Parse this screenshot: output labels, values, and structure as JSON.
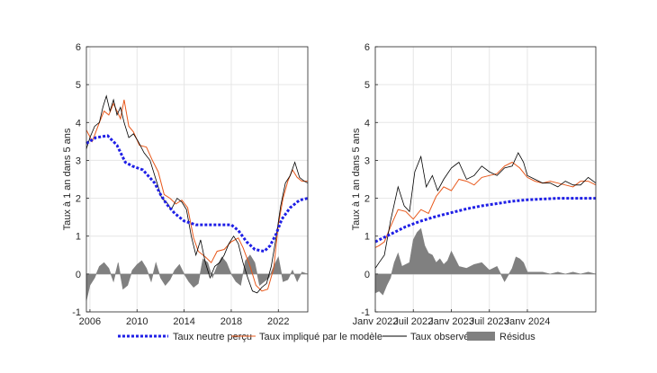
{
  "colors": {
    "neutral": "#1f1fe6",
    "implied": "#e8581b",
    "observed": "#000000",
    "residuals": "#808080",
    "grid": "#e6e6e6",
    "axis": "#262626"
  },
  "legend": {
    "items": [
      {
        "key": "neutral",
        "label": "Taux neutre perçu"
      },
      {
        "key": "implied",
        "label": "Taux impliqué par le modèle"
      },
      {
        "key": "observed",
        "label": "Taux observé"
      },
      {
        "key": "residuals",
        "label": "Résidus"
      }
    ]
  },
  "chart_data": [
    {
      "type": "line",
      "panel": "left",
      "ylabel": "Taux à 1 an dans 5 ans",
      "xlabel": "",
      "ylim": [
        -1,
        6
      ],
      "xlim": [
        2005.7,
        2024.5
      ],
      "grid": true,
      "yticks": [
        -1,
        0,
        1,
        2,
        3,
        4,
        5,
        6
      ],
      "xticks": [
        2006,
        2010,
        2014,
        2018,
        2022
      ],
      "xtick_labels": [
        "2006",
        "2010",
        "2014",
        "2018",
        "2022"
      ],
      "series": [
        {
          "key": "neutral",
          "x": [
            2005.7,
            2006.5,
            2007.5,
            2008.3,
            2009.0,
            2009.6,
            2010.5,
            2011.5,
            2012.0,
            2012.5,
            2013.2,
            2014.0,
            2015.0,
            2016.0,
            2017.0,
            2018.0,
            2018.6,
            2019.3,
            2020.0,
            2020.8,
            2021.3,
            2021.8,
            2022.3,
            2023.0,
            2023.8,
            2024.5
          ],
          "y": [
            3.45,
            3.6,
            3.65,
            3.4,
            2.95,
            2.85,
            2.75,
            2.4,
            2.1,
            1.85,
            1.6,
            1.4,
            1.3,
            1.3,
            1.3,
            1.3,
            1.15,
            0.85,
            0.65,
            0.6,
            0.75,
            1.05,
            1.45,
            1.75,
            1.95,
            2.0
          ]
        },
        {
          "key": "implied",
          "x": [
            2005.7,
            2006.2,
            2006.8,
            2007.2,
            2007.6,
            2008.0,
            2008.3,
            2008.6,
            2008.9,
            2009.3,
            2009.7,
            2010.2,
            2010.8,
            2011.3,
            2011.8,
            2012.3,
            2012.8,
            2013.3,
            2013.8,
            2014.3,
            2014.8,
            2015.2,
            2015.8,
            2016.3,
            2016.8,
            2017.4,
            2018.0,
            2018.6,
            2019.0,
            2019.6,
            2020.1,
            2020.6,
            2021.1,
            2021.6,
            2022.0,
            2022.4,
            2022.8,
            2023.2,
            2023.6,
            2024.0,
            2024.5
          ],
          "y": [
            3.8,
            3.5,
            4.0,
            4.3,
            4.2,
            4.5,
            4.3,
            4.1,
            4.6,
            3.9,
            3.75,
            3.4,
            3.35,
            3.0,
            2.7,
            2.1,
            2.0,
            1.85,
            1.95,
            1.75,
            0.95,
            0.6,
            0.45,
            0.3,
            0.6,
            0.65,
            0.85,
            0.95,
            0.7,
            0.2,
            -0.3,
            -0.45,
            -0.4,
            0.15,
            1.3,
            2.0,
            2.45,
            2.75,
            2.55,
            2.45,
            2.45
          ]
        },
        {
          "key": "observed",
          "x": [
            2005.7,
            2006.0,
            2006.4,
            2006.8,
            2007.1,
            2007.4,
            2007.7,
            2008.0,
            2008.3,
            2008.6,
            2008.9,
            2009.3,
            2009.7,
            2010.1,
            2010.6,
            2011.1,
            2011.6,
            2012.1,
            2012.5,
            2012.9,
            2013.4,
            2013.8,
            2014.2,
            2014.6,
            2015.0,
            2015.4,
            2015.8,
            2016.2,
            2016.6,
            2017.0,
            2017.4,
            2017.8,
            2018.2,
            2018.6,
            2019.0,
            2019.4,
            2019.8,
            2020.2,
            2020.6,
            2021.0,
            2021.4,
            2021.8,
            2022.2,
            2022.6,
            2023.0,
            2023.4,
            2023.8,
            2024.2,
            2024.5
          ],
          "y": [
            3.3,
            3.6,
            3.9,
            4.0,
            4.4,
            4.7,
            4.3,
            4.6,
            4.2,
            4.4,
            4.0,
            3.6,
            3.7,
            3.5,
            3.2,
            3.0,
            2.5,
            2.0,
            1.9,
            1.7,
            2.0,
            1.9,
            1.7,
            1.0,
            0.5,
            0.9,
            0.3,
            -0.1,
            0.2,
            0.3,
            0.5,
            0.8,
            1.0,
            0.8,
            0.3,
            -0.1,
            -0.45,
            -0.5,
            -0.35,
            -0.25,
            0.2,
            0.95,
            1.8,
            2.4,
            2.6,
            2.95,
            2.55,
            2.45,
            2.4
          ]
        },
        {
          "key": "residuals",
          "x": [
            2005.7,
            2006.0,
            2006.4,
            2006.8,
            2007.2,
            2007.6,
            2008.0,
            2008.4,
            2008.8,
            2009.2,
            2009.6,
            2010.0,
            2010.4,
            2010.8,
            2011.2,
            2011.6,
            2012.0,
            2012.4,
            2012.8,
            2013.2,
            2013.6,
            2014.0,
            2014.4,
            2014.8,
            2015.2,
            2015.6,
            2016.0,
            2016.4,
            2016.8,
            2017.2,
            2017.6,
            2018.0,
            2018.4,
            2018.8,
            2019.2,
            2019.6,
            2020.0,
            2020.4,
            2020.8,
            2021.2,
            2021.6,
            2022.0,
            2022.4,
            2022.8,
            2023.2,
            2023.6,
            2024.0,
            2024.5
          ],
          "y": [
            -0.7,
            -0.3,
            -0.1,
            0.2,
            0.3,
            0.15,
            -0.2,
            0.3,
            -0.4,
            -0.3,
            0.1,
            0.25,
            0.35,
            0.15,
            -0.2,
            0.3,
            -0.1,
            -0.3,
            -0.15,
            0.1,
            0.25,
            0.0,
            -0.2,
            -0.35,
            -0.25,
            0.4,
            0.3,
            -0.1,
            0.2,
            0.45,
            0.3,
            0.0,
            -0.2,
            -0.3,
            0.35,
            0.5,
            0.3,
            -0.3,
            -0.2,
            -0.1,
            0.2,
            0.45,
            -0.2,
            -0.15,
            0.1,
            -0.2,
            0.05,
            0.0
          ]
        }
      ]
    },
    {
      "type": "line",
      "panel": "right",
      "ylabel": "Taux à 1 an dans 5 ans",
      "xlabel": "",
      "ylim": [
        -1,
        6
      ],
      "xlim": [
        2022.0,
        2024.9
      ],
      "grid": true,
      "yticks": [
        -1,
        0,
        1,
        2,
        3,
        4,
        5,
        6
      ],
      "xticks": [
        2022.0,
        2022.5,
        2023.0,
        2023.5,
        2024.0
      ],
      "xtick_labels": [
        "Janv 2022",
        "Juil 2022",
        "Janv 2023",
        "Juil 2023",
        "Janv 2024"
      ],
      "series": [
        {
          "key": "neutral",
          "x": [
            2022.0,
            2022.2,
            2022.4,
            2022.6,
            2022.8,
            2023.0,
            2023.2,
            2023.4,
            2023.6,
            2023.8,
            2024.0,
            2024.2,
            2024.4,
            2024.6,
            2024.9
          ],
          "y": [
            0.85,
            1.05,
            1.25,
            1.4,
            1.52,
            1.62,
            1.72,
            1.8,
            1.86,
            1.92,
            1.96,
            1.98,
            2.0,
            2.0,
            2.0
          ]
        },
        {
          "key": "implied",
          "x": [
            2022.0,
            2022.05,
            2022.12,
            2022.2,
            2022.3,
            2022.4,
            2022.5,
            2022.6,
            2022.7,
            2022.8,
            2022.9,
            2023.0,
            2023.1,
            2023.2,
            2023.3,
            2023.4,
            2023.5,
            2023.6,
            2023.7,
            2023.8,
            2023.9,
            2024.0,
            2024.1,
            2024.2,
            2024.3,
            2024.4,
            2024.5,
            2024.6,
            2024.7,
            2024.8,
            2024.9
          ],
          "y": [
            0.7,
            0.75,
            0.85,
            1.25,
            1.7,
            1.65,
            1.45,
            1.7,
            1.6,
            2.05,
            2.3,
            2.2,
            2.5,
            2.45,
            2.35,
            2.55,
            2.6,
            2.65,
            2.85,
            2.95,
            2.8,
            2.55,
            2.45,
            2.4,
            2.45,
            2.4,
            2.35,
            2.3,
            2.45,
            2.45,
            2.35
          ]
        },
        {
          "key": "observed",
          "x": [
            2022.0,
            2022.05,
            2022.12,
            2022.2,
            2022.3,
            2022.38,
            2022.45,
            2022.52,
            2022.6,
            2022.67,
            2022.75,
            2022.82,
            2022.9,
            2023.0,
            2023.1,
            2023.2,
            2023.3,
            2023.4,
            2023.5,
            2023.6,
            2023.7,
            2023.8,
            2023.88,
            2023.95,
            2024.0,
            2024.1,
            2024.2,
            2024.3,
            2024.4,
            2024.5,
            2024.6,
            2024.7,
            2024.8,
            2024.9
          ],
          "y": [
            0.15,
            0.3,
            0.5,
            1.4,
            2.3,
            1.8,
            1.65,
            2.7,
            3.1,
            2.3,
            2.6,
            2.2,
            2.5,
            2.8,
            2.95,
            2.5,
            2.6,
            2.85,
            2.7,
            2.6,
            2.8,
            2.85,
            3.2,
            2.95,
            2.6,
            2.5,
            2.4,
            2.4,
            2.3,
            2.45,
            2.35,
            2.35,
            2.55,
            2.4
          ]
        },
        {
          "key": "residuals",
          "x": [
            2022.0,
            2022.05,
            2022.1,
            2022.15,
            2022.2,
            2022.25,
            2022.3,
            2022.35,
            2022.4,
            2022.45,
            2022.5,
            2022.55,
            2022.6,
            2022.65,
            2022.7,
            2022.75,
            2022.8,
            2022.85,
            2022.9,
            2022.95,
            2023.0,
            2023.1,
            2023.2,
            2023.3,
            2023.4,
            2023.5,
            2023.6,
            2023.7,
            2023.8,
            2023.85,
            2023.9,
            2023.95,
            2024.0,
            2024.1,
            2024.2,
            2024.3,
            2024.4,
            2024.5,
            2024.6,
            2024.7,
            2024.8,
            2024.9
          ],
          "y": [
            -0.5,
            -0.45,
            -0.55,
            -0.3,
            -0.1,
            0.3,
            0.55,
            0.2,
            0.25,
            0.3,
            0.9,
            1.1,
            1.2,
            0.75,
            0.55,
            0.5,
            0.3,
            0.4,
            0.25,
            0.35,
            0.6,
            0.2,
            0.15,
            0.25,
            0.3,
            0.1,
            0.2,
            -0.2,
            0.15,
            0.45,
            0.4,
            0.3,
            0.05,
            0.05,
            0.05,
            0.0,
            0.05,
            0.0,
            0.05,
            0.0,
            0.05,
            0.0
          ]
        }
      ]
    }
  ]
}
